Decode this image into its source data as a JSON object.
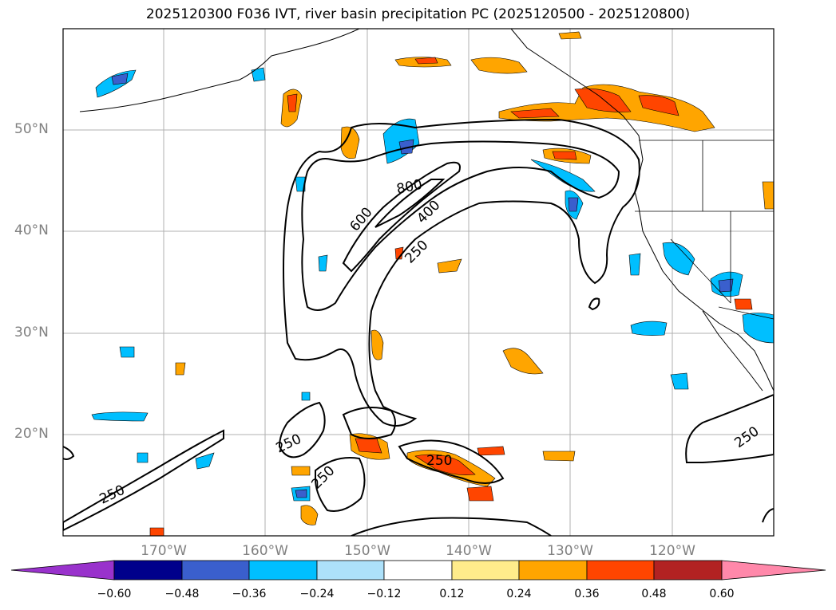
{
  "title": "2025120300 F036 IVT, river basin precipitation PC (2025120500 - 2025120800)",
  "lat_labels": [
    "50°N",
    "40°N",
    "30°N",
    "20°N"
  ],
  "lon_labels": [
    "170°W",
    "160°W",
    "150°W",
    "140°W",
    "130°W",
    "120°W"
  ],
  "contour_labels": [
    "800",
    "600",
    "400",
    "250",
    "250",
    "250",
    "250",
    "250",
    "250"
  ],
  "colorbar": {
    "ticks": [
      "−0.60",
      "−0.48",
      "−0.36",
      "−0.24",
      "−0.12",
      "0.12",
      "0.24",
      "0.36",
      "0.48",
      "0.60"
    ],
    "colors": [
      "#9932CC",
      "#00008B",
      "#3A5FCD",
      "#00BFFF",
      "#ADE1FA",
      "#FFFFFF",
      "#FFEC8B",
      "#FFA500",
      "#FF4500",
      "#B22222",
      "#FF88AA"
    ]
  }
}
